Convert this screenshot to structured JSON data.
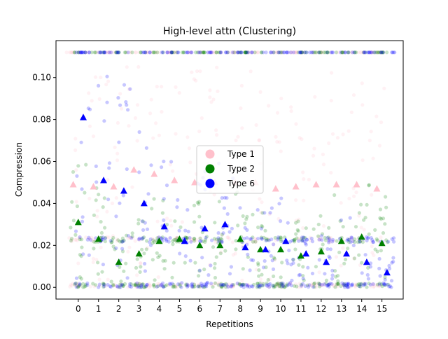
{
  "chart_data": {
    "type": "scatter",
    "title": "High-level attn (Clustering)",
    "xlabel": "Repetitions",
    "ylabel": "Compression",
    "x_ticks": [
      0,
      1,
      2,
      3,
      4,
      5,
      6,
      7,
      8,
      9,
      10,
      11,
      12,
      13,
      14,
      15
    ],
    "y_ticks": [
      "0.00",
      "0.02",
      "0.04",
      "0.06",
      "0.08",
      "0.10"
    ],
    "xlim": [
      -1.1,
      16.05
    ],
    "ylim": [
      -0.0056,
      0.1176
    ],
    "grid": false,
    "legend_position": "center",
    "legend": [
      {
        "name": "Type 1",
        "color": "#ffc0cb"
      },
      {
        "name": "Type 2",
        "color": "#008000"
      },
      {
        "name": "Type 6",
        "color": "#0000ff"
      }
    ],
    "series": [
      {
        "name": "Type 1",
        "color": "#ffc0cb",
        "mean_offset": -0.25,
        "means": [
          0.049,
          0.048,
          0.048,
          0.056,
          0.054,
          0.051,
          0.05,
          0.05,
          0.05,
          0.05,
          0.047,
          0.048,
          0.049,
          0.049,
          0.049,
          0.047
        ]
      },
      {
        "name": "Type 2",
        "color": "#008000",
        "mean_offset": 0.0,
        "means": [
          0.031,
          0.023,
          0.012,
          0.016,
          0.022,
          0.023,
          0.02,
          0.02,
          0.023,
          0.018,
          0.018,
          0.015,
          0.017,
          0.022,
          0.024,
          0.021
        ]
      },
      {
        "name": "Type 6",
        "color": "#0000ff",
        "mean_offset": 0.25,
        "means": [
          0.081,
          0.051,
          0.046,
          0.04,
          0.029,
          0.022,
          0.028,
          0.03,
          0.019,
          0.018,
          0.022,
          0.016,
          0.012,
          0.016,
          0.012,
          0.007
        ]
      }
    ]
  }
}
